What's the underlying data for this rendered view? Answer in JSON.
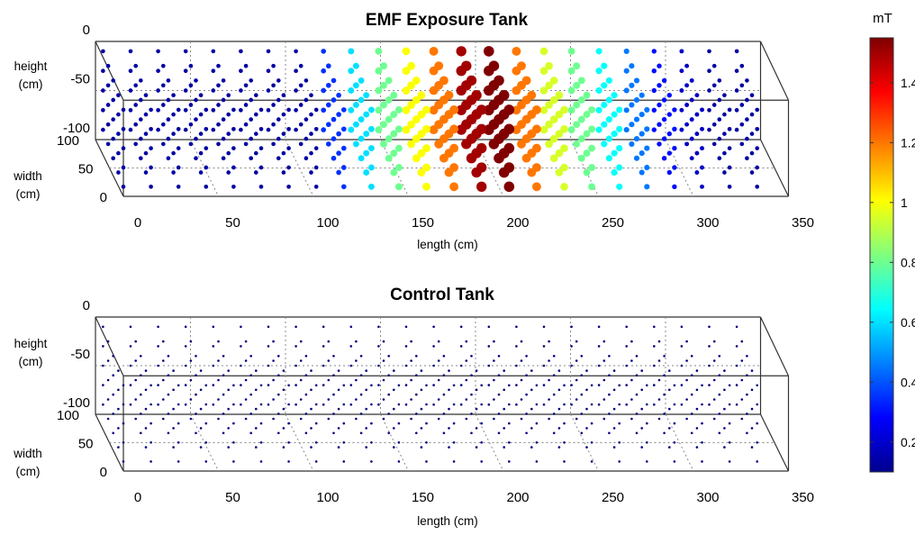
{
  "chart_data": [
    {
      "type": "scatter",
      "projection": "3d",
      "title": "EMF Exposure Tank",
      "xlabel": "length (cm)",
      "ylabel_lines": [
        "width",
        "(cm)"
      ],
      "zlabel_lines": [
        "height",
        "(cm)"
      ],
      "xlim": [
        0,
        350
      ],
      "ylim": [
        0,
        100
      ],
      "zlim": [
        -100,
        0
      ],
      "x_ticks": [
        "0",
        "50",
        "100",
        "150",
        "200",
        "250",
        "300",
        "350"
      ],
      "y_ticks": [
        "0",
        "50",
        "100"
      ],
      "z_ticks": [
        "0",
        "-50",
        "-100"
      ],
      "grid": true,
      "colorbar_unit": "mT",
      "sample_grid": {
        "length_cm_start": 0,
        "length_cm_step": 14.5,
        "length_count": 24,
        "width_cm": [
          0,
          25,
          50,
          75,
          100
        ],
        "depth_cm": [
          -10,
          -30,
          -50,
          -70,
          -90
        ]
      },
      "field_mT_by_length": [
        0.15,
        0.15,
        0.15,
        0.15,
        0.15,
        0.15,
        0.15,
        0.15,
        0.35,
        0.6,
        0.8,
        1.0,
        1.2,
        1.5,
        1.55,
        1.2,
        0.95,
        0.8,
        0.65,
        0.45,
        0.3,
        0.2,
        0.15,
        0.15
      ],
      "colormap": "jet"
    },
    {
      "type": "scatter",
      "projection": "3d",
      "title": "Control Tank",
      "xlabel": "length (cm)",
      "ylabel_lines": [
        "width",
        "(cm)"
      ],
      "zlabel_lines": [
        "height",
        "(cm)"
      ],
      "xlim": [
        0,
        350
      ],
      "ylim": [
        0,
        100
      ],
      "zlim": [
        -100,
        0
      ],
      "x_ticks": [
        "0",
        "50",
        "100",
        "150",
        "200",
        "250",
        "300",
        "350"
      ],
      "y_ticks": [
        "0",
        "50",
        "100"
      ],
      "z_ticks": [
        "0",
        "-50",
        "-100"
      ],
      "grid": true,
      "sample_grid": {
        "length_cm_start": 0,
        "length_cm_step": 14.5,
        "length_count": 24,
        "width_cm": [
          0,
          25,
          50,
          75,
          100
        ],
        "depth_cm": [
          -10,
          -30,
          -50,
          -70,
          -90
        ]
      },
      "field_mT_by_length": [
        0.1,
        0.1,
        0.1,
        0.1,
        0.1,
        0.1,
        0.1,
        0.1,
        0.1,
        0.1,
        0.1,
        0.1,
        0.1,
        0.1,
        0.1,
        0.1,
        0.1,
        0.1,
        0.1,
        0.1,
        0.1,
        0.1,
        0.1,
        0.1
      ],
      "colormap": "jet"
    }
  ],
  "colorbar": {
    "unit": "mT",
    "range": [
      0.1,
      1.55
    ],
    "ticks": [
      "0.2",
      "0.4",
      "0.6",
      "0.8",
      "1",
      "1.2",
      "1.4"
    ],
    "tick_values": [
      0.2,
      0.4,
      0.6,
      0.8,
      1.0,
      1.2,
      1.4
    ],
    "colormap": "jet"
  }
}
